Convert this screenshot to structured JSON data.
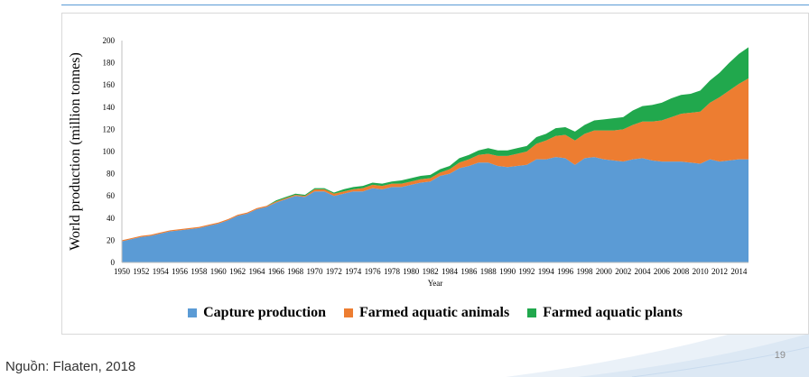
{
  "chart_data": {
    "type": "area",
    "stacked": true,
    "xlabel": "Year",
    "ylabel": "World production (million  tonnes)",
    "ylim": [
      0,
      200
    ],
    "yticks": [
      0,
      20,
      40,
      60,
      80,
      100,
      120,
      140,
      160,
      180,
      200
    ],
    "x": [
      1950,
      1951,
      1952,
      1953,
      1954,
      1955,
      1956,
      1957,
      1958,
      1959,
      1960,
      1961,
      1962,
      1963,
      1964,
      1965,
      1966,
      1967,
      1968,
      1969,
      1970,
      1971,
      1972,
      1973,
      1974,
      1975,
      1976,
      1977,
      1978,
      1979,
      1980,
      1981,
      1982,
      1983,
      1984,
      1985,
      1986,
      1987,
      1988,
      1989,
      1990,
      1991,
      1992,
      1993,
      1994,
      1995,
      1996,
      1997,
      1998,
      1999,
      2000,
      2001,
      2002,
      2003,
      2004,
      2005,
      2006,
      2007,
      2008,
      2009,
      2010,
      2011,
      2012,
      2013,
      2014,
      2015
    ],
    "xtick_labels": [
      "1950",
      "1952",
      "1954",
      "1956",
      "1958",
      "1960",
      "1962",
      "1964",
      "1966",
      "1968",
      "1970",
      "1972",
      "1974",
      "1976",
      "1978",
      "1980",
      "1982",
      "1984",
      "1986",
      "1988",
      "1990",
      "1992",
      "1994",
      "1996",
      "1998",
      "2000",
      "2002",
      "2004",
      "2006",
      "2008",
      "2010",
      "2012",
      "2014"
    ],
    "legend_position": "bottom",
    "grid": false,
    "series": [
      {
        "name": "Capture production",
        "color": "#5b9bd5",
        "values": [
          19,
          21,
          23,
          24,
          26,
          28,
          29,
          30,
          31,
          33,
          35,
          38,
          42,
          44,
          48,
          50,
          54,
          57,
          60,
          59,
          64,
          64,
          60,
          62,
          64,
          64,
          67,
          66,
          68,
          68,
          70,
          72,
          73,
          78,
          80,
          85,
          87,
          90,
          90,
          87,
          86,
          87,
          88,
          93,
          93,
          95,
          94,
          88,
          94,
          95,
          93,
          92,
          91,
          93,
          94,
          92,
          91,
          91,
          91,
          90,
          89,
          93,
          91,
          92,
          93,
          93
        ],
        "stack_top": [
          19,
          21,
          23,
          24,
          26,
          28,
          29,
          30,
          31,
          33,
          35,
          38,
          42,
          44,
          48,
          50,
          54,
          57,
          60,
          59,
          64,
          64,
          60,
          62,
          64,
          64,
          67,
          66,
          68,
          68,
          70,
          72,
          73,
          78,
          80,
          85,
          87,
          90,
          90,
          87,
          86,
          87,
          88,
          93,
          93,
          95,
          94,
          88,
          94,
          95,
          93,
          92,
          91,
          93,
          94,
          92,
          91,
          91,
          91,
          90,
          89,
          93,
          91,
          92,
          93,
          93
        ]
      },
      {
        "name": "Farmed aquatic animals",
        "color": "#ed7d31",
        "values": [
          1,
          1,
          1,
          1,
          1,
          1,
          1,
          1,
          1,
          1,
          1,
          1,
          1,
          1,
          1,
          1,
          1,
          1,
          1,
          1,
          2,
          2,
          2,
          2,
          2,
          3,
          3,
          3,
          3,
          3,
          3,
          3,
          3,
          3,
          4,
          5,
          6,
          7,
          8,
          9,
          10,
          11,
          12,
          14,
          17,
          19,
          21,
          22,
          22,
          24,
          26,
          27,
          29,
          31,
          33,
          35,
          37,
          40,
          43,
          45,
          47,
          51,
          58,
          63,
          68,
          73
        ],
        "stack_top": [
          20,
          22,
          24,
          25,
          27,
          29,
          30,
          31,
          32,
          34,
          36,
          39,
          43,
          45,
          49,
          51,
          55,
          58,
          61,
          60,
          66,
          66,
          62,
          64,
          66,
          67,
          70,
          69,
          71,
          71,
          73,
          75,
          76,
          81,
          84,
          90,
          93,
          97,
          98,
          96,
          96,
          98,
          100,
          107,
          110,
          114,
          115,
          110,
          116,
          119,
          119,
          119,
          120,
          124,
          127,
          127,
          128,
          131,
          134,
          135,
          136,
          144,
          149,
          155,
          161,
          166
        ]
      },
      {
        "name": "Farmed aquatic plants",
        "color": "#21a84d",
        "values": [
          0,
          0,
          0,
          0,
          0,
          0,
          0,
          0,
          0,
          0,
          0,
          0,
          0,
          0,
          0,
          0,
          1,
          1,
          1,
          1,
          1,
          1,
          1,
          2,
          2,
          2,
          2,
          2,
          2,
          3,
          3,
          3,
          3,
          3,
          3,
          4,
          4,
          4,
          5,
          5,
          5,
          5,
          5,
          6,
          6,
          7,
          7,
          8,
          8,
          9,
          10,
          11,
          11,
          13,
          14,
          15,
          16,
          17,
          17,
          17,
          19,
          20,
          22,
          25,
          27,
          28
        ],
        "stack_top": [
          20,
          22,
          24,
          25,
          27,
          29,
          30,
          31,
          32,
          34,
          36,
          39,
          43,
          45,
          49,
          51,
          56,
          59,
          62,
          61,
          67,
          67,
          63,
          66,
          68,
          69,
          72,
          71,
          73,
          74,
          76,
          78,
          79,
          84,
          87,
          94,
          97,
          101,
          103,
          101,
          101,
          103,
          105,
          113,
          116,
          121,
          122,
          118,
          124,
          128,
          129,
          130,
          131,
          137,
          141,
          142,
          144,
          148,
          151,
          152,
          155,
          164,
          171,
          180,
          188,
          194
        ]
      }
    ]
  },
  "footer": {
    "source": "Nguồn: Flaaten, 2018",
    "page_number": "19"
  }
}
